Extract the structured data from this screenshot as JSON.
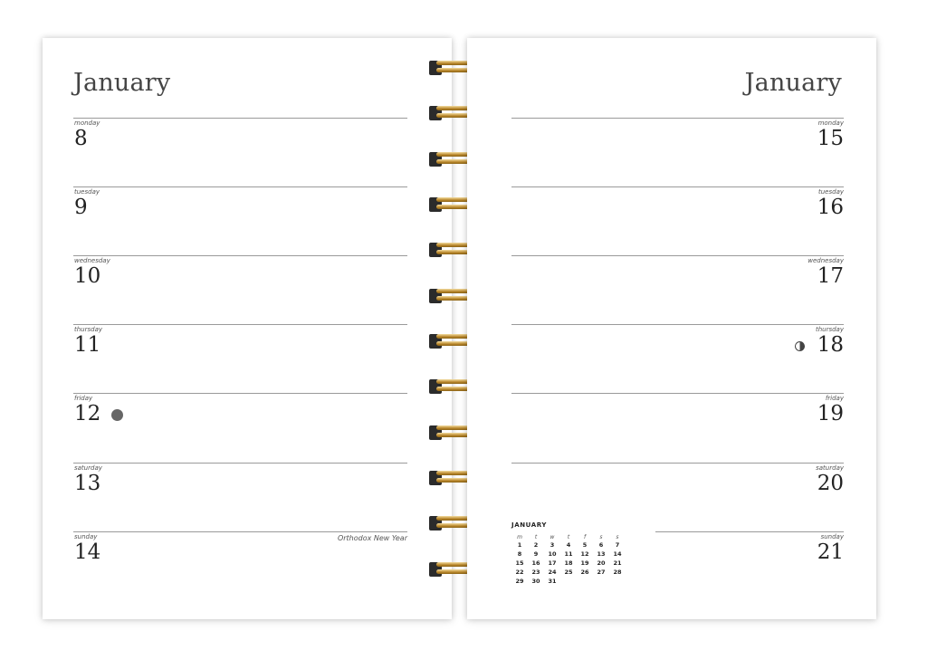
{
  "left_page": {
    "month": "January",
    "days": [
      {
        "weekday": "monday",
        "day": "8",
        "note": ""
      },
      {
        "weekday": "tuesday",
        "day": "9",
        "note": ""
      },
      {
        "weekday": "wednesday",
        "day": "10",
        "note": ""
      },
      {
        "weekday": "thursday",
        "day": "11",
        "note": ""
      },
      {
        "weekday": "friday",
        "day": "12",
        "note": ""
      },
      {
        "weekday": "saturday",
        "day": "13",
        "note": ""
      },
      {
        "weekday": "sunday",
        "day": "14",
        "note": "Orthodox New Year"
      }
    ],
    "moon_phase_icon": "full-moon-icon"
  },
  "right_page": {
    "month": "January",
    "days": [
      {
        "weekday": "monday",
        "day": "15"
      },
      {
        "weekday": "tuesday",
        "day": "16"
      },
      {
        "weekday": "wednesday",
        "day": "17"
      },
      {
        "weekday": "thursday",
        "day": "18"
      },
      {
        "weekday": "friday",
        "day": "19"
      },
      {
        "weekday": "saturday",
        "day": "20"
      },
      {
        "weekday": "sunday",
        "day": "21"
      }
    ],
    "moon_phase_icon": "first-quarter-moon-icon",
    "mini_calendar": {
      "title": "JANUARY",
      "headers": [
        "m",
        "t",
        "w",
        "t",
        "f",
        "s",
        "s"
      ],
      "weeks": [
        [
          "1",
          "2",
          "3",
          "4",
          "5",
          "6",
          "7"
        ],
        [
          "8",
          "9",
          "10",
          "11",
          "12",
          "13",
          "14"
        ],
        [
          "15",
          "16",
          "17",
          "18",
          "19",
          "20",
          "21"
        ],
        [
          "22",
          "23",
          "24",
          "25",
          "26",
          "27",
          "28"
        ],
        [
          "29",
          "30",
          "31",
          "",
          "",
          "",
          ""
        ]
      ]
    }
  },
  "binding": {
    "icon": "spiral-binding-icon",
    "colors": {
      "wire": "#c9982f",
      "post": "#2b2b2b"
    }
  }
}
